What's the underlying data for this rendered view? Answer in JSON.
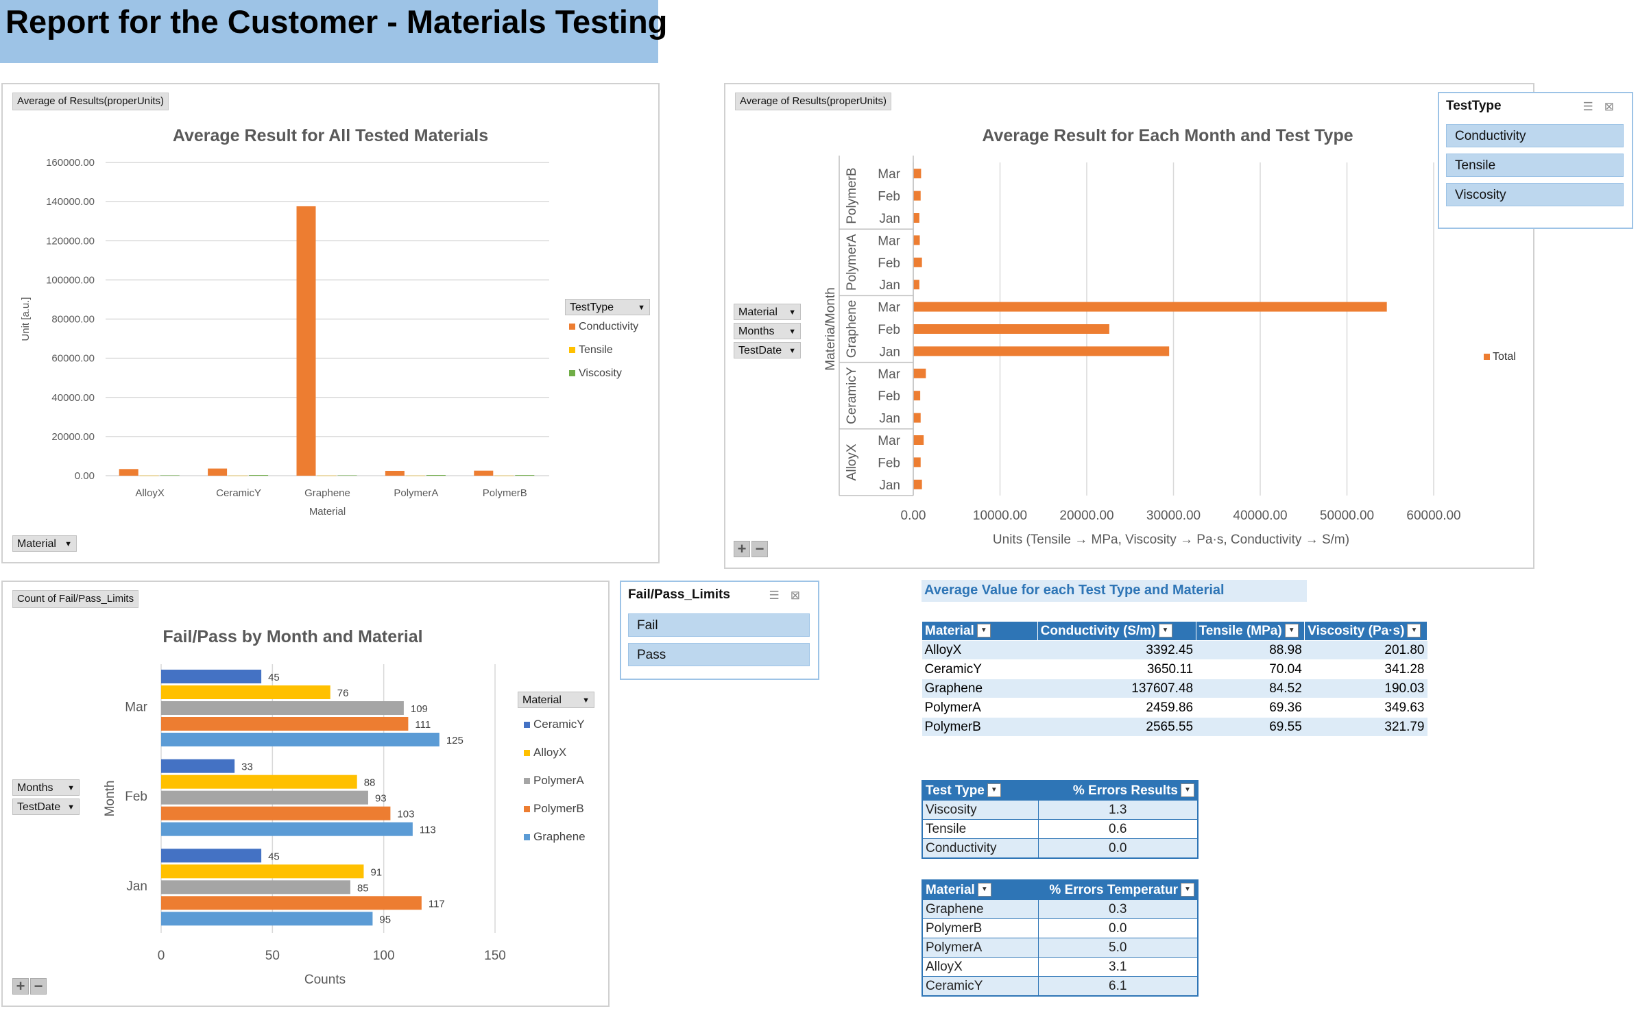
{
  "report_title": "Report for the Customer - Materials Testing",
  "chart1": {
    "field_button": "Average of Results(properUnits)",
    "axis_filter": "Material",
    "legend_filter": "TestType",
    "legend": [
      "Conductivity",
      "Tensile",
      "Viscosity"
    ]
  },
  "chart2": {
    "field_button": "Average of Results(properUnits)",
    "row_filters": [
      "Material",
      "Months",
      "TestDate"
    ],
    "legend": [
      "Total"
    ],
    "slicer": {
      "title": "TestType",
      "items": [
        "Conductivity",
        "Tensile",
        "Viscosity"
      ]
    }
  },
  "chart3": {
    "field_button": "Count of Fail/Pass_Limits",
    "row_filters": [
      "Months",
      "TestDate"
    ],
    "legend_filter": "Material",
    "slicer": {
      "title": "Fail/Pass_Limits",
      "items": [
        "Fail",
        "Pass"
      ]
    }
  },
  "chart_data": [
    {
      "type": "bar",
      "title": "Average Result for All Tested Materials",
      "xlabel": "Material",
      "ylabel": "Unit [a.u.]",
      "ylim": [
        0,
        160000
      ],
      "yticks": [
        "0.00",
        "20000.00",
        "40000.00",
        "60000.00",
        "80000.00",
        "100000.00",
        "120000.00",
        "140000.00",
        "160000.00"
      ],
      "categories": [
        "AlloyX",
        "CeramicY",
        "Graphene",
        "PolymerA",
        "PolymerB"
      ],
      "series": [
        {
          "name": "Conductivity",
          "color": "#ed7d31",
          "values": [
            3392.45,
            3650.11,
            137607.48,
            2459.86,
            2565.55
          ]
        },
        {
          "name": "Tensile",
          "color": "#ffc000",
          "values": [
            88.98,
            70.04,
            84.52,
            69.36,
            69.55
          ]
        },
        {
          "name": "Viscosity",
          "color": "#70ad47",
          "values": [
            201.8,
            341.28,
            190.03,
            349.63,
            321.79
          ]
        }
      ]
    },
    {
      "type": "bar",
      "orientation": "horizontal",
      "title": "Average Result for Each Month and Test Type",
      "xlabel": "Units (Tensile → MPa, Viscosity → Pa·s, Conductivity → S/m)",
      "ylabel": "Materia/Month",
      "xlim": [
        0,
        60000
      ],
      "xticks": [
        "0.00",
        "10000.00",
        "20000.00",
        "30000.00",
        "40000.00",
        "50000.00",
        "60000.00"
      ],
      "groups": [
        {
          "name": "PolymerB",
          "months": [
            "Mar",
            "Feb",
            "Jan"
          ],
          "values": [
            900,
            850,
            700
          ]
        },
        {
          "name": "PolymerA",
          "months": [
            "Mar",
            "Feb",
            "Jan"
          ],
          "values": [
            750,
            1000,
            700
          ]
        },
        {
          "name": "Graphene",
          "months": [
            "Mar",
            "Feb",
            "Jan"
          ],
          "values": [
            54600,
            22600,
            29500
          ]
        },
        {
          "name": "CeramicY",
          "months": [
            "Mar",
            "Feb",
            "Jan"
          ],
          "values": [
            1450,
            800,
            850
          ]
        },
        {
          "name": "AlloyX",
          "months": [
            "Mar",
            "Feb",
            "Jan"
          ],
          "values": [
            1200,
            850,
            1000
          ]
        }
      ],
      "series": [
        {
          "name": "Total",
          "color": "#ed7d31"
        }
      ]
    },
    {
      "type": "bar",
      "orientation": "horizontal",
      "title": "Fail/Pass by Month and Material",
      "xlabel": "Counts",
      "ylabel": "Month",
      "xlim": [
        0,
        150
      ],
      "xticks": [
        "0",
        "50",
        "100",
        "150"
      ],
      "categories": [
        "Mar",
        "Feb",
        "Jan"
      ],
      "series": [
        {
          "name": "CeramicY",
          "color": "#4472c4",
          "values": [
            45,
            33,
            45
          ]
        },
        {
          "name": "AlloyX",
          "color": "#ffc000",
          "values": [
            76,
            88,
            91
          ]
        },
        {
          "name": "PolymerA",
          "color": "#a5a5a5",
          "values": [
            109,
            93,
            85
          ]
        },
        {
          "name": "PolymerB",
          "color": "#ed7d31",
          "values": [
            111,
            103,
            117
          ]
        },
        {
          "name": "Graphene",
          "color": "#5b9bd5",
          "values": [
            125,
            113,
            95
          ]
        }
      ]
    }
  ],
  "avg_table": {
    "title": "Average Value for each Test Type and Material",
    "headers": [
      "Material",
      "Conductivity (S/m)",
      "Tensile (MPa)",
      "Viscosity (Pa·s)"
    ],
    "rows": [
      [
        "AlloyX",
        "3392.45",
        "88.98",
        "201.80"
      ],
      [
        "CeramicY",
        "3650.11",
        "70.04",
        "341.28"
      ],
      [
        "Graphene",
        "137607.48",
        "84.52",
        "190.03"
      ],
      [
        "PolymerA",
        "2459.86",
        "69.36",
        "349.63"
      ],
      [
        "PolymerB",
        "2565.55",
        "69.55",
        "321.79"
      ]
    ]
  },
  "errors_table": {
    "headers": [
      "Test Type",
      "% Errors Results"
    ],
    "rows": [
      [
        "Viscosity",
        "1.3"
      ],
      [
        "Tensile",
        "0.6"
      ],
      [
        "Conductivity",
        "0.0"
      ]
    ]
  },
  "temp_table": {
    "headers": [
      "Material",
      "% Errors Temperatur"
    ],
    "rows": [
      [
        "Graphene",
        "0.3"
      ],
      [
        "PolymerB",
        "0.0"
      ],
      [
        "PolymerA",
        "5.0"
      ],
      [
        "AlloyX",
        "3.1"
      ],
      [
        "CeramicY",
        "6.1"
      ]
    ]
  }
}
